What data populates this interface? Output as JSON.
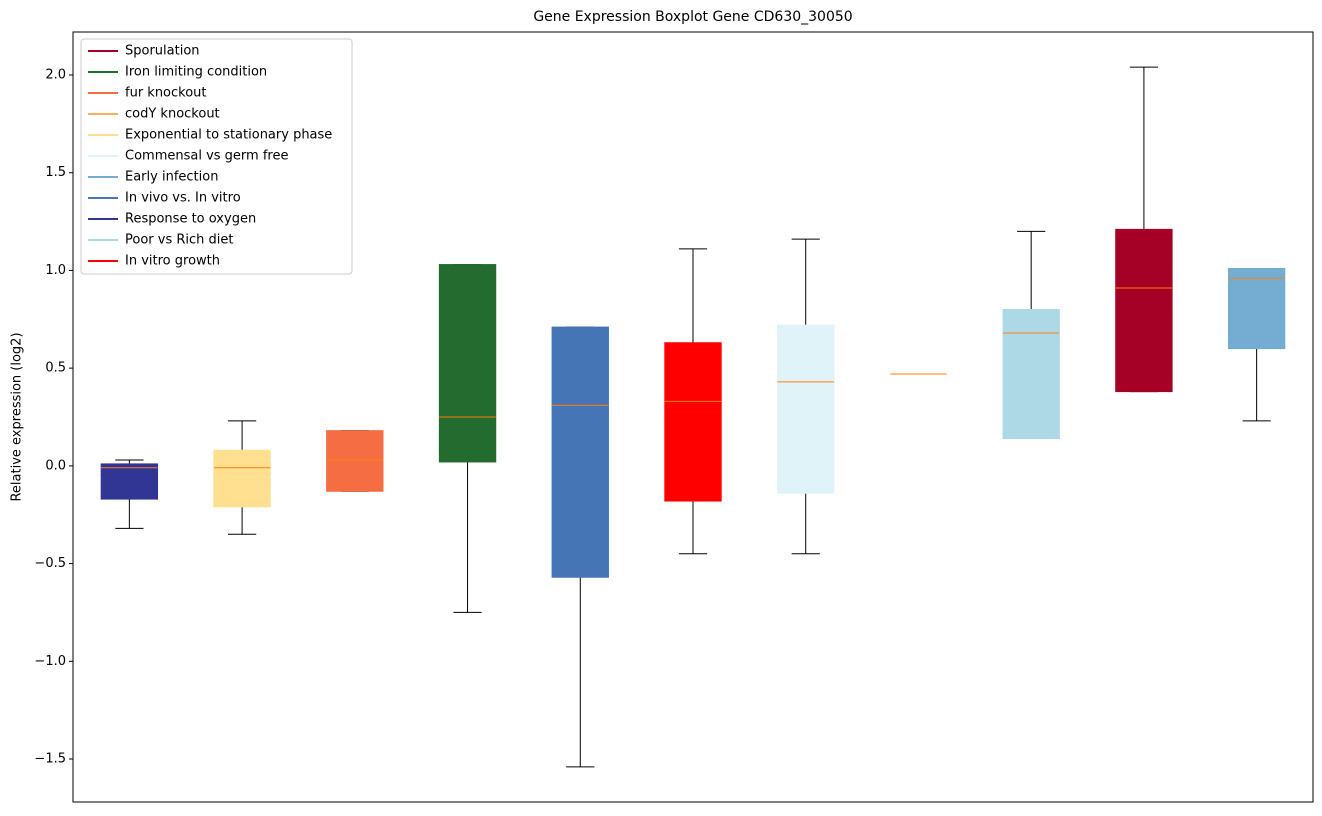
{
  "chart_data": {
    "type": "box",
    "title": "Gene Expression Boxplot Gene CD630_30050",
    "ylabel": "Relative expression (log2)",
    "xlim": [
      0.5,
      11.5
    ],
    "ylim": [
      -1.72,
      2.22
    ],
    "yticks": [
      {
        "value": -1.5,
        "label": "−1.5"
      },
      {
        "value": -1.0,
        "label": "−1.0"
      },
      {
        "value": -0.5,
        "label": "−0.5"
      },
      {
        "value": 0.0,
        "label": "0.0"
      },
      {
        "value": 0.5,
        "label": "0.5"
      },
      {
        "value": 1.0,
        "label": "1.0"
      },
      {
        "value": 1.5,
        "label": "1.5"
      },
      {
        "value": 2.0,
        "label": "2.0"
      }
    ],
    "legend": "upper left",
    "median_color": "#ff7f0e",
    "series": [
      {
        "name": "Sporulation",
        "color": "#a50026",
        "x": 10,
        "stats": {
          "whislo": 0.38,
          "q1": 0.38,
          "med": 0.91,
          "q3": 1.21,
          "whishi": 2.04
        }
      },
      {
        "name": "Iron limiting condition",
        "color": "#236b2e",
        "x": 4,
        "stats": {
          "whislo": -0.75,
          "q1": 0.02,
          "med": 0.25,
          "q3": 1.03,
          "whishi": 1.03
        }
      },
      {
        "name": "fur knockout",
        "color": "#f46d43",
        "x": 3,
        "stats": {
          "whislo": -0.13,
          "q1": -0.13,
          "med": 0.03,
          "q3": 0.18,
          "whishi": 0.18
        }
      },
      {
        "name": "codY knockout",
        "color": "#fdae61",
        "x": 8,
        "stats": {
          "whislo": 0.47,
          "q1": 0.47,
          "med": 0.47,
          "q3": 0.47,
          "whishi": 0.47
        }
      },
      {
        "name": "Exponential to stationary phase",
        "color": "#fee090",
        "x": 2,
        "stats": {
          "whislo": -0.35,
          "q1": -0.21,
          "med": -0.01,
          "q3": 0.08,
          "whishi": 0.23
        }
      },
      {
        "name": "Commensal vs germ free",
        "color": "#e0f3f8",
        "x": 7,
        "stats": {
          "whislo": -0.45,
          "q1": -0.14,
          "med": 0.43,
          "q3": 0.72,
          "whishi": 1.16
        }
      },
      {
        "name": "Early infection",
        "color": "#74add1",
        "x": 11,
        "stats": {
          "whislo": 0.23,
          "q1": 0.6,
          "med": 0.96,
          "q3": 1.01,
          "whishi": 1.01
        }
      },
      {
        "name": "In vivo vs. In vitro",
        "color": "#4575b4",
        "x": 5,
        "stats": {
          "whislo": -1.54,
          "q1": -0.57,
          "med": 0.31,
          "q3": 0.71,
          "whishi": 0.71
        }
      },
      {
        "name": "Response to oxygen",
        "color": "#313695",
        "x": 1,
        "stats": {
          "whislo": -0.32,
          "q1": -0.17,
          "med": -0.01,
          "q3": 0.01,
          "whishi": 0.03
        }
      },
      {
        "name": "Poor vs Rich diet",
        "color": "#add8e6",
        "x": 9,
        "stats": {
          "whislo": 0.14,
          "q1": 0.14,
          "med": 0.68,
          "q3": 0.8,
          "whishi": 1.2
        }
      },
      {
        "name": "In vitro growth",
        "color": "#ff0000",
        "x": 6,
        "stats": {
          "whislo": -0.45,
          "q1": -0.18,
          "med": 0.33,
          "q3": 0.63,
          "whishi": 1.11
        }
      }
    ]
  }
}
